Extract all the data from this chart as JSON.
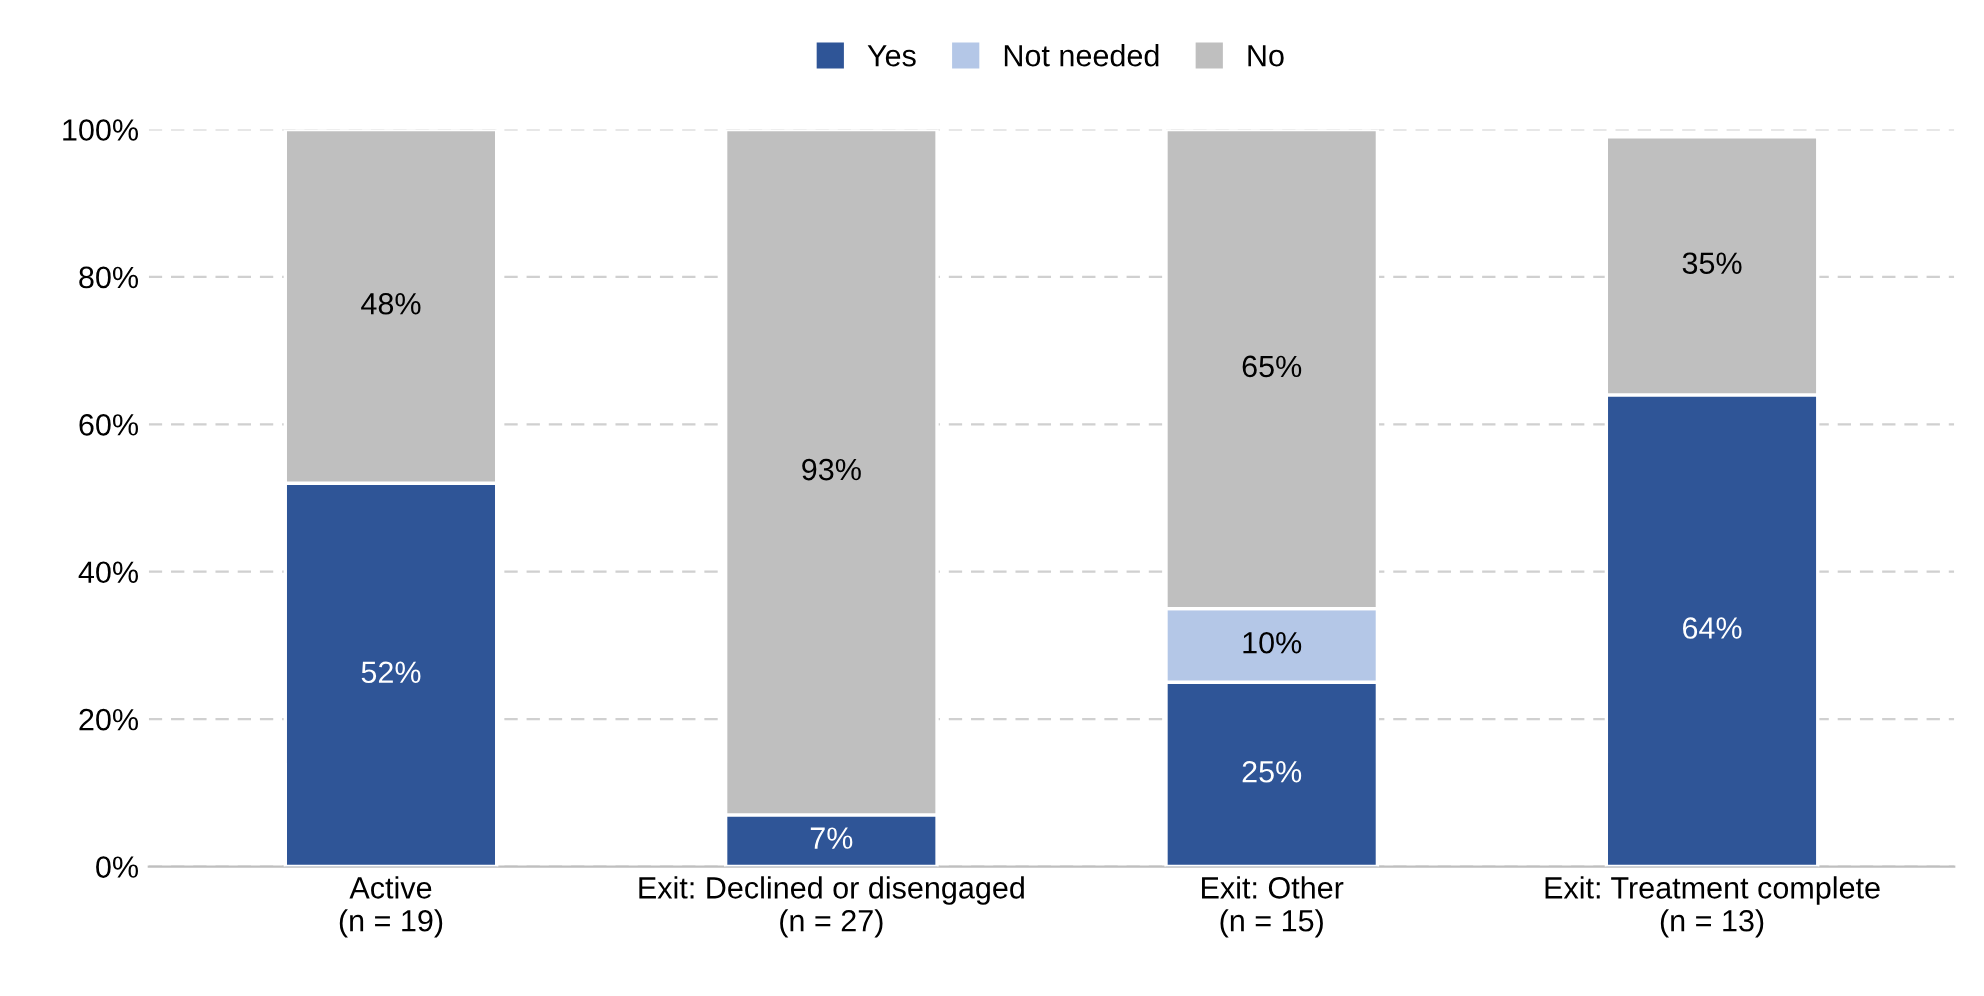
{
  "chart_data": {
    "type": "bar",
    "stacked": true,
    "categories": [
      "Active\n(n = 19)",
      "Exit: Declined or disengaged\n(n = 27)",
      "Exit: Other\n(n = 15)",
      "Exit: Treatment complete\n(n = 13)"
    ],
    "series": [
      {
        "name": "Yes",
        "color": "#2f5597",
        "values": [
          52,
          7,
          25,
          64
        ],
        "value_labels": [
          "52%",
          "7%",
          "25%",
          "64%"
        ]
      },
      {
        "name": "Not needed",
        "color": "#b4c7e7",
        "values": [
          null,
          null,
          10,
          null
        ],
        "value_labels": [
          null,
          null,
          "10%",
          null
        ]
      },
      {
        "name": "No",
        "color": "#bfbfbf",
        "values": [
          48,
          93,
          65,
          35
        ],
        "value_labels": [
          "48%",
          "93%",
          "65%",
          "35%"
        ]
      }
    ],
    "ylim": [
      0,
      100
    ],
    "yticks": [
      {
        "value": 0,
        "label": "0%"
      },
      {
        "value": 20,
        "label": "20%"
      },
      {
        "value": 40,
        "label": "40%"
      },
      {
        "value": 60,
        "label": "60%"
      },
      {
        "value": 80,
        "label": "80%"
      },
      {
        "value": 100,
        "label": "100%"
      }
    ],
    "grid": "y",
    "legend": "top"
  }
}
